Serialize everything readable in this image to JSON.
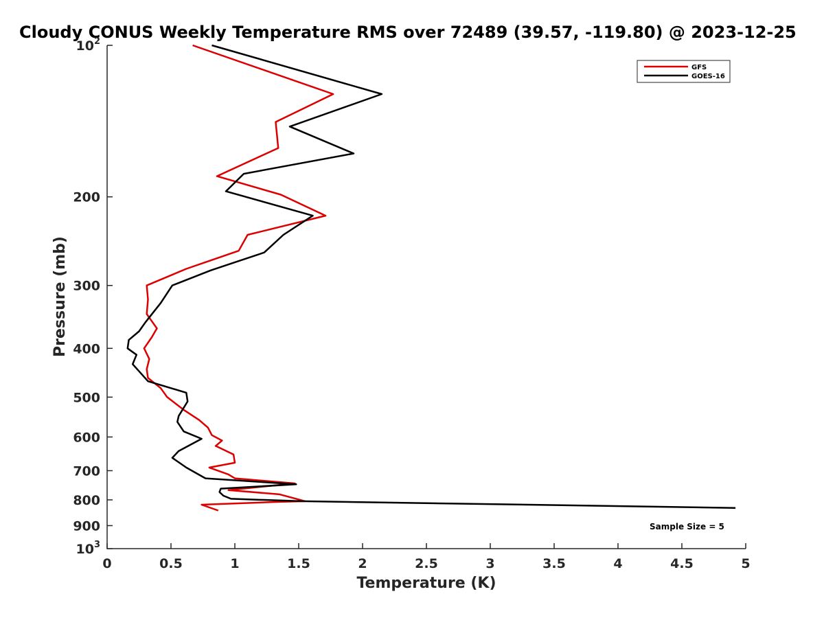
{
  "chart_data": {
    "type": "line",
    "title": "Cloudy CONUS Weekly Temperature RMS over 72489 (39.57, -119.80) @ 2023-12-25",
    "xlabel": "Temperature (K)",
    "ylabel": "Pressure (mb)",
    "xlim": [
      0,
      5
    ],
    "ylim": [
      100,
      1000
    ],
    "y_scale": "log",
    "y_reversed": true,
    "grid": false,
    "legend_position": "top-right",
    "x_ticks": [
      "0",
      "0.5",
      "1",
      "1.5",
      "2",
      "2.5",
      "3",
      "3.5",
      "4",
      "4.5",
      "5"
    ],
    "y_ticks": [
      {
        "value": 100,
        "base": "10",
        "exp": "2",
        "label": ""
      },
      {
        "value": 200,
        "base": "",
        "exp": "",
        "label": "200"
      },
      {
        "value": 300,
        "base": "",
        "exp": "",
        "label": "300"
      },
      {
        "value": 400,
        "base": "",
        "exp": "",
        "label": "400"
      },
      {
        "value": 500,
        "base": "",
        "exp": "",
        "label": "500"
      },
      {
        "value": 600,
        "base": "",
        "exp": "",
        "label": "600"
      },
      {
        "value": 700,
        "base": "",
        "exp": "",
        "label": "700"
      },
      {
        "value": 800,
        "base": "",
        "exp": "",
        "label": "800"
      },
      {
        "value": 900,
        "base": "",
        "exp": "",
        "label": "900"
      },
      {
        "value": 1000,
        "base": "10",
        "exp": "3",
        "label": ""
      }
    ],
    "annotation": "Sample Size = 5",
    "series": [
      {
        "name": "GFS",
        "color": "#dd0000",
        "points": [
          [
            0.67,
            100
          ],
          [
            1.77,
            125
          ],
          [
            1.32,
            142
          ],
          [
            1.34,
            160
          ],
          [
            0.86,
            182
          ],
          [
            1.36,
            198
          ],
          [
            1.71,
            218
          ],
          [
            1.1,
            238
          ],
          [
            1.03,
            256
          ],
          [
            0.62,
            278
          ],
          [
            0.31,
            300
          ],
          [
            0.32,
            320
          ],
          [
            0.31,
            342
          ],
          [
            0.39,
            365
          ],
          [
            0.35,
            380
          ],
          [
            0.29,
            400
          ],
          [
            0.33,
            420
          ],
          [
            0.31,
            440
          ],
          [
            0.32,
            458
          ],
          [
            0.42,
            480
          ],
          [
            0.47,
            500
          ],
          [
            0.6,
            530
          ],
          [
            0.72,
            555
          ],
          [
            0.79,
            575
          ],
          [
            0.82,
            595
          ],
          [
            0.9,
            610
          ],
          [
            0.85,
            625
          ],
          [
            0.99,
            650
          ],
          [
            1.0,
            675
          ],
          [
            0.8,
            690
          ],
          [
            0.95,
            712
          ],
          [
            1.0,
            725
          ],
          [
            1.47,
            742
          ],
          [
            0.95,
            765
          ],
          [
            1.35,
            780
          ],
          [
            1.55,
            805
          ],
          [
            1.3,
            808
          ],
          [
            0.74,
            818
          ],
          [
            0.87,
            840
          ]
        ]
      },
      {
        "name": "GOES-16",
        "color": "#000000",
        "points": [
          [
            0.82,
            100
          ],
          [
            2.15,
            125
          ],
          [
            1.43,
            145
          ],
          [
            1.93,
            164
          ],
          [
            1.07,
            180
          ],
          [
            0.93,
            195
          ],
          [
            1.61,
            218
          ],
          [
            1.38,
            238
          ],
          [
            1.23,
            258
          ],
          [
            0.81,
            280
          ],
          [
            0.51,
            300
          ],
          [
            0.42,
            325
          ],
          [
            0.3,
            355
          ],
          [
            0.25,
            370
          ],
          [
            0.17,
            385
          ],
          [
            0.16,
            400
          ],
          [
            0.23,
            412
          ],
          [
            0.2,
            430
          ],
          [
            0.32,
            465
          ],
          [
            0.62,
            490
          ],
          [
            0.63,
            510
          ],
          [
            0.56,
            545
          ],
          [
            0.55,
            560
          ],
          [
            0.6,
            585
          ],
          [
            0.74,
            605
          ],
          [
            0.56,
            640
          ],
          [
            0.51,
            660
          ],
          [
            0.62,
            690
          ],
          [
            0.77,
            725
          ],
          [
            1.48,
            745
          ],
          [
            0.89,
            760
          ],
          [
            0.88,
            772
          ],
          [
            0.91,
            785
          ],
          [
            0.97,
            796
          ],
          [
            1.52,
            805
          ],
          [
            4.92,
            830
          ]
        ]
      }
    ]
  }
}
